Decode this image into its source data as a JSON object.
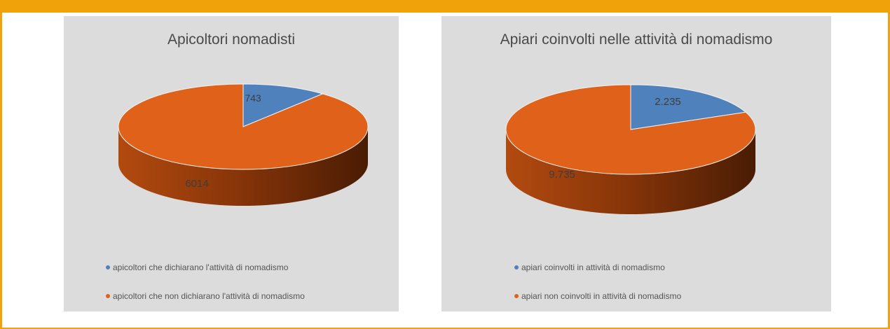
{
  "banner": {
    "text": ""
  },
  "colors": {
    "banner": "#f0a20b",
    "slice_blue": "#4f81bd",
    "slice_orange": "#e0621a",
    "panel_bg": "#dcdcdc"
  },
  "chart_data": [
    {
      "type": "pie",
      "title": "Apicoltori nomadisti",
      "slices": [
        {
          "label": "apicoltori che dichiarano l'attività di nomadismo",
          "value": 743,
          "display": "743",
          "color": "#4f81bd"
        },
        {
          "label": "apicoltori che non dichiarano l'attività di nomadismo",
          "value": 6014,
          "display": "6014",
          "color": "#e0621a"
        }
      ],
      "legend_position": "bottom-left",
      "style": "3d"
    },
    {
      "type": "pie",
      "title": "Apiari coinvolti nelle attività di nomadismo",
      "slices": [
        {
          "label": "apiari coinvolti in attività di nomadismo",
          "value": 2235,
          "display": "2.235",
          "color": "#4f81bd"
        },
        {
          "label": "apiari non coinvolti in attività di nomadismo",
          "value": 9735,
          "display": "9.735",
          "color": "#e0621a"
        }
      ],
      "legend_position": "bottom-left",
      "style": "3d"
    }
  ]
}
